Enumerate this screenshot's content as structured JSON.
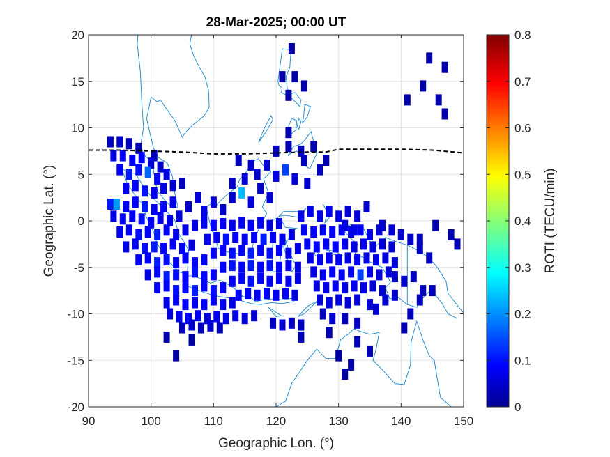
{
  "chart_data": {
    "type": "heatmap",
    "title": "28-Mar-2025; 00:00 UT",
    "xlabel": "Geographic Lon. (°)",
    "ylabel": "Geographic Lat. (°)",
    "xlim": [
      90,
      150
    ],
    "ylim": [
      -20,
      20
    ],
    "xticks": [
      90,
      100,
      110,
      120,
      130,
      140,
      150
    ],
    "yticks": [
      -20,
      -15,
      -10,
      -5,
      0,
      5,
      10,
      15,
      20
    ],
    "grid": true,
    "colorbar": {
      "label": "ROTI (TECU/min)",
      "range": [
        0,
        0.8
      ],
      "ticks": [
        0,
        0.1,
        0.2,
        0.3,
        0.4,
        0.5,
        0.6,
        0.7,
        0.8
      ],
      "colormap": "jet"
    },
    "magnetic_equator": {
      "style": "dashed",
      "color": "#000000",
      "lon": [
        90,
        95,
        100,
        105,
        110,
        115,
        120,
        125,
        128,
        130,
        135,
        140,
        145,
        150
      ],
      "lat": [
        7.6,
        7.6,
        7.5,
        7.4,
        7.2,
        7.2,
        7.3,
        7.4,
        7.4,
        7.7,
        7.7,
        7.7,
        7.6,
        7.3
      ]
    },
    "cell_size": {
      "dlon": 1.0,
      "dlat": 1.2
    },
    "cells": [
      [
        93.5,
        8.5,
        0.05
      ],
      [
        95,
        8.5,
        0.06
      ],
      [
        96.5,
        8.3,
        0.05
      ],
      [
        98,
        7.8,
        0.04
      ],
      [
        100.5,
        7,
        0.05
      ],
      [
        94,
        7,
        0.08
      ],
      [
        95.5,
        7,
        0.1
      ],
      [
        97,
        6.5,
        0.09
      ],
      [
        98.5,
        6.8,
        0.1
      ],
      [
        100,
        6.2,
        0.07
      ],
      [
        101.5,
        5.8,
        0.06
      ],
      [
        95,
        5.5,
        0.1
      ],
      [
        96.5,
        5,
        0.12
      ],
      [
        98,
        5.5,
        0.11
      ],
      [
        99.5,
        5.2,
        0.18
      ],
      [
        101,
        4.5,
        0.1
      ],
      [
        102.5,
        5,
        0.08
      ],
      [
        96,
        3.5,
        0.09
      ],
      [
        97.5,
        3.8,
        0.1
      ],
      [
        99,
        3.2,
        0.11
      ],
      [
        100.5,
        3,
        0.09
      ],
      [
        102,
        3.5,
        0.08
      ],
      [
        103.5,
        3.8,
        0.06
      ],
      [
        105,
        4,
        0.05
      ],
      [
        93.5,
        1.8,
        0.12
      ],
      [
        94.5,
        1.8,
        0.22
      ],
      [
        96,
        1.5,
        0.09
      ],
      [
        97.5,
        2,
        0.1
      ],
      [
        99,
        1.5,
        0.12
      ],
      [
        100.5,
        1.2,
        0.09
      ],
      [
        102,
        1.5,
        0.1
      ],
      [
        103.5,
        2,
        0.08
      ],
      [
        94,
        0.5,
        0.08
      ],
      [
        95.5,
        0.2,
        0.1
      ],
      [
        97,
        0.5,
        0.09
      ],
      [
        98.5,
        0.2,
        0.11
      ],
      [
        100,
        -0.2,
        0.1
      ],
      [
        101.5,
        0.3,
        0.09
      ],
      [
        103,
        0,
        0.08
      ],
      [
        104.5,
        0.5,
        0.07
      ],
      [
        95,
        -1.2,
        0.09
      ],
      [
        96.5,
        -1,
        0.1
      ],
      [
        98,
        -1.5,
        0.11
      ],
      [
        99.5,
        -1.2,
        0.1
      ],
      [
        101,
        -1.5,
        0.12
      ],
      [
        102.5,
        -1,
        0.1
      ],
      [
        104,
        -1.5,
        0.09
      ],
      [
        105.5,
        -1,
        0.08
      ],
      [
        96,
        -2.8,
        0.08
      ],
      [
        97.5,
        -2.5,
        0.1
      ],
      [
        99,
        -3,
        0.11
      ],
      [
        100.5,
        -2.8,
        0.12
      ],
      [
        102,
        -3,
        0.1
      ],
      [
        103.5,
        -2.5,
        0.09
      ],
      [
        105,
        -3,
        0.1
      ],
      [
        106.5,
        -2.6,
        0.08
      ],
      [
        98,
        -4.2,
        0.09
      ],
      [
        99.5,
        -4,
        0.1
      ],
      [
        101,
        -4.5,
        0.12
      ],
      [
        102.5,
        -4.2,
        0.11
      ],
      [
        104,
        -4.5,
        0.1
      ],
      [
        105.5,
        -4,
        0.09
      ],
      [
        107,
        -4.5,
        0.1
      ],
      [
        108.5,
        -4.2,
        0.09
      ],
      [
        99.5,
        -5.8,
        0.08
      ],
      [
        101,
        -5.5,
        0.1
      ],
      [
        102.5,
        -6,
        0.12
      ],
      [
        104,
        -5.8,
        0.11
      ],
      [
        105.5,
        -6,
        0.1
      ],
      [
        107,
        -5.5,
        0.11
      ],
      [
        108.5,
        -6,
        0.1
      ],
      [
        110,
        -5.8,
        0.09
      ],
      [
        101,
        -7.2,
        0.09
      ],
      [
        102.5,
        -7,
        0.1
      ],
      [
        104,
        -7.5,
        0.11
      ],
      [
        105.5,
        -7.2,
        0.1
      ],
      [
        107,
        -7.5,
        0.12
      ],
      [
        108.5,
        -7,
        0.1
      ],
      [
        110,
        -7.5,
        0.11
      ],
      [
        111.5,
        -7.2,
        0.1
      ],
      [
        102.5,
        -8.8,
        0.08
      ],
      [
        104,
        -8.5,
        0.1
      ],
      [
        105.5,
        -9,
        0.1
      ],
      [
        107,
        -8.8,
        0.09
      ],
      [
        108.5,
        -9,
        0.1
      ],
      [
        110,
        -8.5,
        0.1
      ],
      [
        111.5,
        -9,
        0.09
      ],
      [
        113,
        -8.8,
        0.08
      ],
      [
        103,
        -10,
        0.07
      ],
      [
        104.5,
        -10.3,
        0.09
      ],
      [
        106,
        -10.5,
        0.1
      ],
      [
        107.5,
        -10.2,
        0.09
      ],
      [
        109,
        -10.5,
        0.08
      ],
      [
        110.5,
        -10.3,
        0.09
      ],
      [
        112,
        -10.5,
        0.08
      ],
      [
        113.5,
        -10.2,
        0.08
      ],
      [
        115,
        -10.5,
        0.07
      ],
      [
        116.5,
        -10.2,
        0.06
      ],
      [
        105,
        -11.5,
        0.05
      ],
      [
        106.5,
        -11.2,
        0.06
      ],
      [
        108,
        -11.5,
        0.05
      ],
      [
        109.5,
        -11.3,
        0.06
      ],
      [
        111,
        -11.5,
        0.05
      ],
      [
        102.5,
        -12.5,
        0.03
      ],
      [
        104,
        -14.5,
        0.03
      ],
      [
        106.5,
        -12.8,
        0.03
      ],
      [
        106,
        1.5,
        0.06
      ],
      [
        107.5,
        2.5,
        0.07
      ],
      [
        108.5,
        1,
        0.08
      ],
      [
        110,
        2,
        0.07
      ],
      [
        111.5,
        1.2,
        0.06
      ],
      [
        113,
        2.5,
        0.06
      ],
      [
        114.5,
        3,
        0.25
      ],
      [
        116,
        2,
        0.07
      ],
      [
        117.5,
        3.5,
        0.06
      ],
      [
        119,
        2.5,
        0.07
      ],
      [
        107,
        -0.5,
        0.08
      ],
      [
        108.5,
        -0.2,
        0.09
      ],
      [
        110,
        -0.5,
        0.1
      ],
      [
        111.5,
        -0.3,
        0.09
      ],
      [
        113,
        -0.5,
        0.08
      ],
      [
        114.5,
        -0.2,
        0.09
      ],
      [
        116,
        -0.5,
        0.1
      ],
      [
        117.5,
        -0.2,
        0.09
      ],
      [
        119,
        -0.5,
        0.08
      ],
      [
        120.5,
        -0.3,
        0.08
      ],
      [
        109,
        -2,
        0.09
      ],
      [
        110.5,
        -1.8,
        0.1
      ],
      [
        112,
        -2,
        0.11
      ],
      [
        113.5,
        -1.8,
        0.1
      ],
      [
        115,
        -2,
        0.09
      ],
      [
        116.5,
        -1.8,
        0.1
      ],
      [
        118,
        -2,
        0.12
      ],
      [
        119.5,
        -1.8,
        0.1
      ],
      [
        121,
        -2,
        0.09
      ],
      [
        122.5,
        -1.5,
        0.08
      ],
      [
        110,
        -3.5,
        0.09
      ],
      [
        111.5,
        -3.2,
        0.1
      ],
      [
        113,
        -3.5,
        0.11
      ],
      [
        114.5,
        -3.2,
        0.1
      ],
      [
        116,
        -3.5,
        0.12
      ],
      [
        117.5,
        -3.2,
        0.1
      ],
      [
        119,
        -3.5,
        0.11
      ],
      [
        120.5,
        -3.2,
        0.1
      ],
      [
        122,
        -3.5,
        0.09
      ],
      [
        123.5,
        -3,
        0.08
      ],
      [
        111.5,
        -5,
        0.1
      ],
      [
        113,
        -4.8,
        0.11
      ],
      [
        114.5,
        -5,
        0.1
      ],
      [
        116,
        -4.8,
        0.12
      ],
      [
        117.5,
        -5,
        0.1
      ],
      [
        119,
        -4.8,
        0.11
      ],
      [
        120.5,
        -5,
        0.1
      ],
      [
        122,
        -4.8,
        0.09
      ],
      [
        123.5,
        -5,
        0.08
      ],
      [
        113,
        -6.5,
        0.09
      ],
      [
        114.5,
        -6.2,
        0.1
      ],
      [
        116,
        -6.5,
        0.11
      ],
      [
        117.5,
        -6.2,
        0.1
      ],
      [
        119,
        -6.5,
        0.09
      ],
      [
        120.5,
        -6.2,
        0.1
      ],
      [
        122,
        -6.5,
        0.09
      ],
      [
        123.5,
        -6.2,
        0.08
      ],
      [
        114,
        -8,
        0.09
      ],
      [
        115.5,
        -7.8,
        0.1
      ],
      [
        117,
        -8,
        0.09
      ],
      [
        118.5,
        -7.8,
        0.1
      ],
      [
        120,
        -8,
        0.09
      ],
      [
        121.5,
        -7.8,
        0.1
      ],
      [
        123,
        -8,
        0.08
      ],
      [
        119.5,
        -11,
        0.05
      ],
      [
        121,
        -11.2,
        0.06
      ],
      [
        122.5,
        -11,
        0.05
      ],
      [
        124,
        -11.2,
        0.05
      ],
      [
        124,
        -12.5,
        0.04
      ],
      [
        113,
        4,
        0.06
      ],
      [
        115,
        4.5,
        0.07
      ],
      [
        117,
        5,
        0.06
      ],
      [
        118.5,
        6,
        0.07
      ],
      [
        120,
        4.8,
        0.08
      ],
      [
        121.5,
        5.5,
        0.15
      ],
      [
        123,
        4.5,
        0.07
      ],
      [
        125,
        4,
        0.06
      ],
      [
        116,
        6,
        0.06
      ],
      [
        114,
        6.5,
        0.05
      ],
      [
        120,
        7.5,
        0.05
      ],
      [
        122,
        8,
        0.04
      ],
      [
        124,
        7.5,
        0.05
      ],
      [
        126,
        8,
        0.04
      ],
      [
        122,
        9.5,
        0.04
      ],
      [
        124.5,
        6.5,
        0.05
      ],
      [
        127,
        5.5,
        0.05
      ],
      [
        128,
        6.5,
        0.04
      ],
      [
        124,
        0.5,
        0.08
      ],
      [
        125.5,
        1,
        0.09
      ],
      [
        127,
        0.5,
        0.08
      ],
      [
        128.5,
        1,
        0.09
      ],
      [
        130,
        0.5,
        0.08
      ],
      [
        131.5,
        1,
        0.07
      ],
      [
        133,
        0.5,
        0.07
      ],
      [
        134.5,
        1.5,
        0.06
      ],
      [
        124.5,
        -1,
        0.09
      ],
      [
        126,
        -1.2,
        0.1
      ],
      [
        127.5,
        -1,
        0.09
      ],
      [
        129,
        -1.2,
        0.1
      ],
      [
        130.5,
        -1,
        0.09
      ],
      [
        132,
        -1.2,
        0.08
      ],
      [
        133.5,
        -1,
        0.09
      ],
      [
        135,
        -1.5,
        0.08
      ],
      [
        136.5,
        -1,
        0.07
      ],
      [
        125,
        -2.5,
        0.09
      ],
      [
        126.5,
        -2.8,
        0.1
      ],
      [
        128,
        -2.5,
        0.09
      ],
      [
        129.5,
        -2.8,
        0.1
      ],
      [
        131,
        -2.5,
        0.09
      ],
      [
        132.5,
        -2.8,
        0.08
      ],
      [
        134,
        -2.5,
        0.09
      ],
      [
        135.5,
        -2.8,
        0.08
      ],
      [
        137,
        -2.5,
        0.07
      ],
      [
        138.5,
        -2.8,
        0.07
      ],
      [
        125.5,
        -4,
        0.08
      ],
      [
        127,
        -4.2,
        0.09
      ],
      [
        128.5,
        -4,
        0.1
      ],
      [
        130,
        -4.2,
        0.09
      ],
      [
        131.5,
        -4,
        0.08
      ],
      [
        133,
        -4.2,
        0.09
      ],
      [
        134.5,
        -4,
        0.08
      ],
      [
        136,
        -4.2,
        0.08
      ],
      [
        137.5,
        -4,
        0.07
      ],
      [
        139,
        -4.5,
        0.07
      ],
      [
        126,
        -5.5,
        0.08
      ],
      [
        127.5,
        -5.8,
        0.09
      ],
      [
        129,
        -5.5,
        0.09
      ],
      [
        130.5,
        -5.8,
        0.1
      ],
      [
        132,
        -5.5,
        0.09
      ],
      [
        133.5,
        -5.8,
        0.15
      ],
      [
        135,
        -5.5,
        0.08
      ],
      [
        136.5,
        -5.8,
        0.07
      ],
      [
        138,
        -5.5,
        0.07
      ],
      [
        126.5,
        -7,
        0.07
      ],
      [
        128,
        -7.2,
        0.08
      ],
      [
        129.5,
        -7,
        0.09
      ],
      [
        131,
        -7.2,
        0.08
      ],
      [
        132.5,
        -7,
        0.09
      ],
      [
        134,
        -7.2,
        0.08
      ],
      [
        135.5,
        -7,
        0.07
      ],
      [
        137,
        -7.5,
        0.06
      ],
      [
        127,
        -8.5,
        0.07
      ],
      [
        128.5,
        -8.8,
        0.08
      ],
      [
        130,
        -8.5,
        0.08
      ],
      [
        131.5,
        -8.8,
        0.07
      ],
      [
        133,
        -8.5,
        0.07
      ],
      [
        135,
        -9,
        0.06
      ],
      [
        127.5,
        -10,
        0.05
      ],
      [
        129,
        -10.5,
        0.06
      ],
      [
        131,
        -10.5,
        0.05
      ],
      [
        133,
        -11,
        0.05
      ],
      [
        128.5,
        -12,
        0.04
      ],
      [
        130,
        -14.5,
        0.03
      ],
      [
        131,
        -16.5,
        0.03
      ],
      [
        132,
        -15.5,
        0.03
      ],
      [
        133,
        -13,
        0.04
      ],
      [
        135,
        -14,
        0.04
      ],
      [
        131,
        -0.5,
        0.08
      ],
      [
        132.5,
        -1,
        0.08
      ],
      [
        137,
        -0.5,
        0.06
      ],
      [
        138.5,
        -1,
        0.07
      ],
      [
        140,
        -1.5,
        0.06
      ],
      [
        141.5,
        -2,
        0.06
      ],
      [
        143,
        -3,
        0.05
      ],
      [
        144.5,
        -4,
        0.05
      ],
      [
        143,
        -2,
        0.05
      ],
      [
        139,
        -6,
        0.06
      ],
      [
        140.5,
        -6.5,
        0.06
      ],
      [
        142,
        -6,
        0.05
      ],
      [
        143.5,
        -7.5,
        0.05
      ],
      [
        145,
        -7.5,
        0.05
      ],
      [
        140.5,
        -11.5,
        0.04
      ],
      [
        141.5,
        -10,
        0.05
      ],
      [
        143,
        -8.5,
        0.05
      ],
      [
        145.5,
        -0.5,
        0.04
      ],
      [
        148,
        -1.5,
        0.04
      ],
      [
        149,
        -2.5,
        0.04
      ],
      [
        136,
        -9.5,
        0.06
      ],
      [
        137.5,
        -8.5,
        0.06
      ],
      [
        139,
        -8,
        0.06
      ],
      [
        121,
        15.5,
        0.03
      ],
      [
        122.5,
        18.5,
        0.03
      ],
      [
        123,
        15.5,
        0.03
      ],
      [
        122,
        13.5,
        0.03
      ],
      [
        124.5,
        14.5,
        0.03
      ],
      [
        144.5,
        17.5,
        0.03
      ],
      [
        147,
        16.5,
        0.03
      ],
      [
        143.5,
        14.5,
        0.03
      ],
      [
        146,
        13,
        0.03
      ],
      [
        147,
        11.5,
        0.03
      ],
      [
        141,
        13,
        0.03
      ]
    ]
  }
}
